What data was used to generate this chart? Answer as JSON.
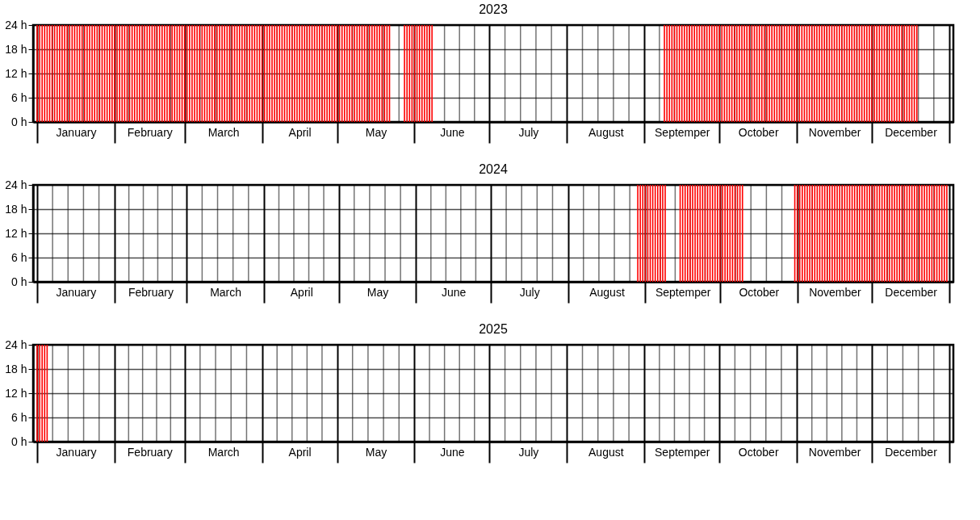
{
  "chart_data": [
    {
      "type": "bar",
      "title": "2023",
      "color": "#ff0000",
      "grid": true,
      "ylim": [
        0,
        24
      ],
      "yticks": [
        {
          "value": 0,
          "label": "0 h"
        },
        {
          "value": 6,
          "label": "6 h"
        },
        {
          "value": 12,
          "label": "12 h"
        },
        {
          "value": 18,
          "label": "18 h"
        },
        {
          "value": 24,
          "label": "24 h"
        }
      ],
      "xlim": [
        "2023-01-01",
        "2024-01-01"
      ],
      "xticks": [
        {
          "value": "2023-01-01",
          "label": null
        },
        {
          "value": "2023-02-01",
          "label": null
        },
        {
          "value": "2023-03-01",
          "label": null
        },
        {
          "value": "2023-04-01",
          "label": null
        },
        {
          "value": "2023-05-01",
          "label": null
        },
        {
          "value": "2023-06-01",
          "label": null
        },
        {
          "value": "2023-07-01",
          "label": null
        },
        {
          "value": "2023-08-01",
          "label": null
        },
        {
          "value": "2023-09-01",
          "label": null
        },
        {
          "value": "2023-10-01",
          "label": null
        },
        {
          "value": "2023-11-01",
          "label": null
        },
        {
          "value": "2023-12-01",
          "label": null
        },
        {
          "value": "2024-01-01",
          "label": null
        },
        {
          "value": "2023-01-16T12:00",
          "label": "January"
        },
        {
          "value": "2023-02-15",
          "label": "February"
        },
        {
          "value": "2023-03-16T12:00",
          "label": "March"
        },
        {
          "value": "2023-04-16",
          "label": "April"
        },
        {
          "value": "2023-05-16T12:00",
          "label": "May"
        },
        {
          "value": "2023-06-16",
          "label": "June"
        },
        {
          "value": "2023-07-16T12:00",
          "label": "July"
        },
        {
          "value": "2023-08-16T12:00",
          "label": "August"
        },
        {
          "value": "2023-09-16",
          "label": "Septemper"
        },
        {
          "value": "2023-10-16T12:00",
          "label": "October"
        },
        {
          "value": "2023-11-16",
          "label": "November"
        },
        {
          "value": "2023-12-16T12:00",
          "label": "December"
        }
      ],
      "x": [
        "2023-01-01",
        "2023-01-02",
        "2023-01-03",
        "2023-01-04",
        "2023-01-05",
        "2023-01-06",
        "2023-01-07",
        "2023-01-08",
        "2023-01-09",
        "2023-01-10",
        "2023-01-11",
        "2023-01-12",
        "2023-01-13",
        "2023-01-14",
        "2023-01-15",
        "2023-01-16",
        "2023-01-17",
        "2023-01-18",
        "2023-01-19",
        "2023-01-20",
        "2023-01-21",
        "2023-01-22",
        "2023-01-23",
        "2023-01-24",
        "2023-01-25",
        "2023-01-26",
        "2023-01-27",
        "2023-01-28",
        "2023-01-29",
        "2023-01-30",
        "2023-01-31",
        "2023-02-01",
        "2023-02-02",
        "2023-02-03",
        "2023-02-04",
        "2023-02-05",
        "2023-02-06",
        "2023-02-07",
        "2023-02-08",
        "2023-02-09",
        "2023-02-10",
        "2023-02-11",
        "2023-02-12",
        "2023-02-13",
        "2023-02-14",
        "2023-02-15",
        "2023-02-16",
        "2023-02-17",
        "2023-02-18",
        "2023-02-19",
        "2023-02-20",
        "2023-02-21",
        "2023-02-22",
        "2023-02-23",
        "2023-02-24",
        "2023-02-25",
        "2023-02-26",
        "2023-02-27",
        "2023-02-28",
        "2023-03-01",
        "2023-03-02",
        "2023-03-03",
        "2023-03-04",
        "2023-03-05",
        "2023-03-06",
        "2023-03-07",
        "2023-03-08",
        "2023-03-09",
        "2023-03-10",
        "2023-03-11",
        "2023-03-12",
        "2023-03-13",
        "2023-03-14",
        "2023-03-15",
        "2023-03-16",
        "2023-03-17",
        "2023-03-18",
        "2023-03-19",
        "2023-03-20",
        "2023-03-21",
        "2023-03-22",
        "2023-03-23",
        "2023-03-24",
        "2023-03-25",
        "2023-03-26",
        "2023-03-27",
        "2023-03-28",
        "2023-03-29",
        "2023-03-30",
        "2023-03-31",
        "2023-04-01",
        "2023-04-02",
        "2023-04-03",
        "2023-04-04",
        "2023-04-05",
        "2023-04-06",
        "2023-04-07",
        "2023-04-08",
        "2023-04-09",
        "2023-04-10",
        "2023-04-11",
        "2023-04-12",
        "2023-04-13",
        "2023-04-14",
        "2023-04-15",
        "2023-04-16",
        "2023-04-17",
        "2023-04-18",
        "2023-04-19",
        "2023-04-20",
        "2023-04-21",
        "2023-04-22",
        "2023-04-23",
        "2023-04-24",
        "2023-04-25",
        "2023-04-26",
        "2023-04-27",
        "2023-04-28",
        "2023-04-29",
        "2023-04-30",
        "2023-05-01",
        "2023-05-02",
        "2023-05-03",
        "2023-05-04",
        "2023-05-05",
        "2023-05-06",
        "2023-05-07",
        "2023-05-08",
        "2023-05-09",
        "2023-05-10",
        "2023-05-11",
        "2023-05-12",
        "2023-05-13",
        "2023-05-14",
        "2023-05-15",
        "2023-05-16",
        "2023-05-17",
        "2023-05-18",
        "2023-05-19",
        "2023-05-20",
        "2023-05-21",
        "2023-05-22",
        "2023-05-28",
        "2023-05-29",
        "2023-05-30",
        "2023-05-31",
        "2023-06-01",
        "2023-06-02",
        "2023-06-03",
        "2023-06-04",
        "2023-06-05",
        "2023-06-06",
        "2023-06-07",
        "2023-06-08",
        "2023-09-09",
        "2023-09-10",
        "2023-09-11",
        "2023-09-12",
        "2023-09-13",
        "2023-09-14",
        "2023-09-15",
        "2023-09-16",
        "2023-09-17",
        "2023-09-18",
        "2023-09-19",
        "2023-09-20",
        "2023-09-21",
        "2023-09-22",
        "2023-09-23",
        "2023-09-24",
        "2023-09-25",
        "2023-09-26",
        "2023-09-27",
        "2023-09-28",
        "2023-09-29",
        "2023-09-30",
        "2023-10-01",
        "2023-10-02",
        "2023-10-03",
        "2023-10-04",
        "2023-10-05",
        "2023-10-06",
        "2023-10-07",
        "2023-10-08",
        "2023-10-09",
        "2023-10-10",
        "2023-10-11",
        "2023-10-12",
        "2023-10-13",
        "2023-10-14",
        "2023-10-15",
        "2023-10-16",
        "2023-10-17",
        "2023-10-18",
        "2023-10-19",
        "2023-10-20",
        "2023-10-21",
        "2023-10-22",
        "2023-10-23",
        "2023-10-24",
        "2023-10-25",
        "2023-10-26",
        "2023-10-27",
        "2023-10-28",
        "2023-10-29",
        "2023-10-30",
        "2023-10-31",
        "2023-11-01",
        "2023-11-02",
        "2023-11-03",
        "2023-11-04",
        "2023-11-05",
        "2023-11-06",
        "2023-11-07",
        "2023-11-08",
        "2023-11-09",
        "2023-11-10",
        "2023-11-11",
        "2023-11-12",
        "2023-11-13",
        "2023-11-14",
        "2023-11-15",
        "2023-11-16",
        "2023-11-17",
        "2023-11-18",
        "2023-11-19",
        "2023-11-20",
        "2023-11-21",
        "2023-11-22",
        "2023-11-23",
        "2023-11-24",
        "2023-11-25",
        "2023-11-26",
        "2023-11-27",
        "2023-11-28",
        "2023-11-29",
        "2023-11-30",
        "2023-12-01",
        "2023-12-02",
        "2023-12-03",
        "2023-12-04",
        "2023-12-05",
        "2023-12-06",
        "2023-12-07",
        "2023-12-08",
        "2023-12-09",
        "2023-12-10",
        "2023-12-11",
        "2023-12-12",
        "2023-12-13",
        "2023-12-14",
        "2023-12-15",
        "2023-12-16",
        "2023-12-17",
        "2023-12-18",
        "2023-12-19"
      ],
      "values": [
        24,
        24,
        24,
        24,
        24,
        24,
        24,
        24,
        24,
        24,
        24,
        24,
        24,
        24,
        24,
        24,
        24,
        24,
        24,
        24,
        24,
        24,
        24,
        24,
        24,
        24,
        24,
        24,
        24,
        24,
        24,
        24,
        24,
        24,
        24,
        24,
        24,
        24,
        24,
        24,
        24,
        24,
        24,
        24,
        24,
        24,
        24,
        24,
        24,
        24,
        24,
        24,
        24,
        24,
        24,
        24,
        24,
        24,
        24,
        24,
        24,
        24,
        24,
        24,
        24,
        24,
        24,
        24,
        24,
        24,
        24,
        24,
        24,
        24,
        24,
        24,
        24,
        24,
        24,
        24,
        24,
        24,
        24,
        24,
        24,
        24,
        24,
        24,
        24,
        24,
        24,
        24,
        24,
        24,
        24,
        24,
        24,
        24,
        24,
        24,
        24,
        24,
        24,
        24,
        24,
        24,
        24,
        24,
        24,
        24,
        24,
        24,
        24,
        24,
        24,
        24,
        24,
        24,
        24,
        24,
        24,
        24,
        24,
        24,
        24,
        24,
        24,
        24,
        24,
        24,
        24,
        24,
        24,
        24,
        24,
        24,
        24,
        24,
        24,
        24,
        24,
        24,
        24,
        24,
        24,
        24,
        24,
        24,
        24,
        24,
        24,
        24,
        24,
        24,
        24,
        24,
        24,
        24,
        24,
        24,
        24,
        24,
        24,
        24,
        24,
        24,
        24,
        24,
        24,
        24,
        24,
        24,
        24,
        24,
        24,
        24,
        24,
        24,
        24,
        24,
        24,
        24,
        24,
        24,
        24,
        24,
        24,
        24,
        24,
        24,
        24,
        24,
        24,
        24,
        24,
        24,
        24,
        24,
        24,
        24,
        24,
        24,
        24,
        24,
        24,
        24,
        24,
        24,
        24,
        24,
        24,
        24,
        24,
        24,
        24,
        24,
        24,
        24,
        24,
        24,
        24,
        24,
        24,
        24,
        24,
        24,
        24,
        24,
        24,
        24,
        24,
        24,
        24,
        24,
        24,
        24,
        24,
        24,
        24,
        24,
        24,
        24,
        24,
        24,
        24,
        24,
        24,
        24,
        24,
        24,
        24,
        24,
        24,
        24,
        24,
        24
      ]
    },
    {
      "type": "bar",
      "title": "2024",
      "color": "#ff0000",
      "grid": true,
      "ylim": [
        0,
        24
      ],
      "yticks": [
        {
          "value": 0,
          "label": "0 h"
        },
        {
          "value": 6,
          "label": "6 h"
        },
        {
          "value": 12,
          "label": "12 h"
        },
        {
          "value": 18,
          "label": "18 h"
        },
        {
          "value": 24,
          "label": "24 h"
        }
      ],
      "xlim": [
        "2024-01-01",
        "2025-01-01"
      ],
      "xticks": [
        {
          "value": "2024-01-01",
          "label": null
        },
        {
          "value": "2024-02-01",
          "label": null
        },
        {
          "value": "2024-03-01",
          "label": null
        },
        {
          "value": "2024-04-01",
          "label": null
        },
        {
          "value": "2024-05-01",
          "label": null
        },
        {
          "value": "2024-06-01",
          "label": null
        },
        {
          "value": "2024-07-01",
          "label": null
        },
        {
          "value": "2024-08-01",
          "label": null
        },
        {
          "value": "2024-09-01",
          "label": null
        },
        {
          "value": "2024-10-01",
          "label": null
        },
        {
          "value": "2024-11-01",
          "label": null
        },
        {
          "value": "2024-12-01",
          "label": null
        },
        {
          "value": "2025-01-01",
          "label": null
        },
        {
          "value": "2024-01-16T12:00",
          "label": "January"
        },
        {
          "value": "2024-02-15T12:00",
          "label": "February"
        },
        {
          "value": "2024-03-16T12:00",
          "label": "March"
        },
        {
          "value": "2024-04-16",
          "label": "April"
        },
        {
          "value": "2024-05-16T12:00",
          "label": "May"
        },
        {
          "value": "2024-06-16",
          "label": "June"
        },
        {
          "value": "2024-07-16T12:00",
          "label": "July"
        },
        {
          "value": "2024-08-16T12:00",
          "label": "August"
        },
        {
          "value": "2024-09-16",
          "label": "Septemper"
        },
        {
          "value": "2024-10-16T12:00",
          "label": "October"
        },
        {
          "value": "2024-11-16",
          "label": "November"
        },
        {
          "value": "2024-12-16T12:00",
          "label": "December"
        }
      ],
      "x": [
        "2024-08-29",
        "2024-08-30",
        "2024-08-31",
        "2024-09-01",
        "2024-09-02",
        "2024-09-03",
        "2024-09-04",
        "2024-09-05",
        "2024-09-06",
        "2024-09-07",
        "2024-09-08",
        "2024-09-09",
        "2024-09-15",
        "2024-09-16",
        "2024-09-17",
        "2024-09-18",
        "2024-09-19",
        "2024-09-20",
        "2024-09-21",
        "2024-09-22",
        "2024-09-23",
        "2024-09-24",
        "2024-09-25",
        "2024-09-26",
        "2024-09-27",
        "2024-09-28",
        "2024-09-29",
        "2024-09-30",
        "2024-10-01",
        "2024-10-02",
        "2024-10-03",
        "2024-10-04",
        "2024-10-05",
        "2024-10-06",
        "2024-10-07",
        "2024-10-08",
        "2024-10-09",
        "2024-10-10",
        "2024-10-31",
        "2024-11-01",
        "2024-11-02",
        "2024-11-03",
        "2024-11-04",
        "2024-11-05",
        "2024-11-06",
        "2024-11-07",
        "2024-11-08",
        "2024-11-09",
        "2024-11-10",
        "2024-11-11",
        "2024-11-12",
        "2024-11-13",
        "2024-11-14",
        "2024-11-15",
        "2024-11-16",
        "2024-11-17",
        "2024-11-18",
        "2024-11-19",
        "2024-11-20",
        "2024-11-21",
        "2024-11-22",
        "2024-11-23",
        "2024-11-24",
        "2024-11-25",
        "2024-11-26",
        "2024-11-27",
        "2024-11-28",
        "2024-11-29",
        "2024-11-30",
        "2024-12-01",
        "2024-12-02",
        "2024-12-03",
        "2024-12-04",
        "2024-12-05",
        "2024-12-06",
        "2024-12-07",
        "2024-12-08",
        "2024-12-09",
        "2024-12-10",
        "2024-12-11",
        "2024-12-12",
        "2024-12-13",
        "2024-12-14",
        "2024-12-15",
        "2024-12-16",
        "2024-12-17",
        "2024-12-18",
        "2024-12-19",
        "2024-12-20",
        "2024-12-21",
        "2024-12-22",
        "2024-12-23",
        "2024-12-24",
        "2024-12-25",
        "2024-12-26",
        "2024-12-27",
        "2024-12-28",
        "2024-12-29",
        "2024-12-30",
        "2024-12-31"
      ],
      "values": [
        24,
        24,
        24,
        24,
        24,
        24,
        24,
        24,
        24,
        24,
        24,
        24,
        24,
        24,
        24,
        24,
        24,
        24,
        24,
        24,
        24,
        24,
        24,
        24,
        24,
        24,
        24,
        24,
        24,
        24,
        24,
        24,
        24,
        24,
        24,
        24,
        24,
        24,
        24,
        24,
        24,
        24,
        24,
        24,
        24,
        24,
        24,
        24,
        24,
        24,
        24,
        24,
        24,
        24,
        24,
        24,
        24,
        24,
        24,
        24,
        24,
        24,
        24,
        24,
        24,
        24,
        24,
        24,
        24,
        24,
        24,
        24,
        24,
        24,
        24,
        24,
        24,
        24,
        24,
        24,
        24,
        24,
        24,
        24,
        24,
        24,
        24,
        24,
        24,
        24,
        24,
        24,
        24,
        24,
        24,
        24,
        24,
        24,
        24,
        24
      ]
    },
    {
      "type": "bar",
      "title": "2025",
      "color": "#ff0000",
      "grid": true,
      "ylim": [
        0,
        24
      ],
      "yticks": [
        {
          "value": 0,
          "label": "0 h"
        },
        {
          "value": 6,
          "label": "6 h"
        },
        {
          "value": 12,
          "label": "12 h"
        },
        {
          "value": 18,
          "label": "18 h"
        },
        {
          "value": 24,
          "label": "24 h"
        }
      ],
      "xlim": [
        "2025-01-01",
        "2026-01-01"
      ],
      "xticks": [
        {
          "value": "2025-01-01",
          "label": null
        },
        {
          "value": "2025-02-01",
          "label": null
        },
        {
          "value": "2025-03-01",
          "label": null
        },
        {
          "value": "2025-04-01",
          "label": null
        },
        {
          "value": "2025-05-01",
          "label": null
        },
        {
          "value": "2025-06-01",
          "label": null
        },
        {
          "value": "2025-07-01",
          "label": null
        },
        {
          "value": "2025-08-01",
          "label": null
        },
        {
          "value": "2025-09-01",
          "label": null
        },
        {
          "value": "2025-10-01",
          "label": null
        },
        {
          "value": "2025-11-01",
          "label": null
        },
        {
          "value": "2025-12-01",
          "label": null
        },
        {
          "value": "2026-01-01",
          "label": null
        },
        {
          "value": "2025-01-16T12:00",
          "label": "January"
        },
        {
          "value": "2025-02-15",
          "label": "February"
        },
        {
          "value": "2025-03-16T12:00",
          "label": "March"
        },
        {
          "value": "2025-04-16",
          "label": "April"
        },
        {
          "value": "2025-05-16T12:00",
          "label": "May"
        },
        {
          "value": "2025-06-16",
          "label": "June"
        },
        {
          "value": "2025-07-16T12:00",
          "label": "July"
        },
        {
          "value": "2025-08-16T12:00",
          "label": "August"
        },
        {
          "value": "2025-09-16",
          "label": "Septemper"
        },
        {
          "value": "2025-10-16T12:00",
          "label": "October"
        },
        {
          "value": "2025-11-16",
          "label": "November"
        },
        {
          "value": "2025-12-16T12:00",
          "label": "December"
        }
      ],
      "x": [
        "2025-01-01",
        "2025-01-02",
        "2025-01-03",
        "2025-01-04",
        "2025-01-05"
      ],
      "values": [
        24,
        24,
        24,
        24,
        24
      ]
    }
  ]
}
